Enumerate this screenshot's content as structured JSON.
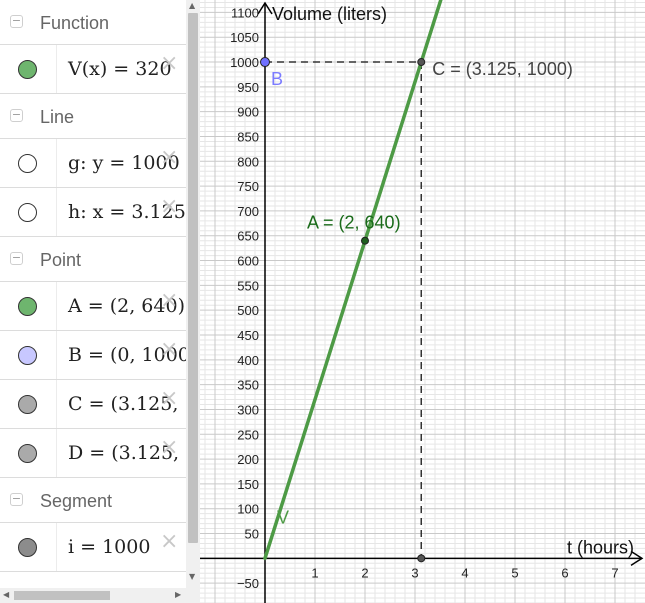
{
  "algebra": {
    "groups": [
      {
        "title": "Function",
        "items": [
          {
            "expr": "V(x) = 320",
            "color": "#6eb56e"
          }
        ]
      },
      {
        "title": "Line",
        "items": [
          {
            "expr": "g: y = 1000",
            "color": "#ffffff"
          },
          {
            "expr": "h: x = 3.125",
            "color": "#ffffff"
          }
        ]
      },
      {
        "title": "Point",
        "items": [
          {
            "expr": "A = (2, 640)",
            "color": "#6eb56e"
          },
          {
            "expr": "B = (0, 1000",
            "color": "#c8c8ff"
          },
          {
            "expr": "C = (3.125,",
            "color": "#aaaaaa"
          },
          {
            "expr": "D = (3.125,",
            "color": "#aaaaaa"
          }
        ]
      },
      {
        "title": "Segment",
        "items": [
          {
            "expr": "i = 1000",
            "color": "#8c8c8c"
          }
        ]
      }
    ],
    "delete_glyph": "×",
    "collapse_glyph": "−"
  },
  "graph": {
    "x_axis_label": "t (hours)",
    "y_axis_label": "Volume (liters)",
    "x_ticks": [
      1,
      2,
      3,
      4,
      5,
      6,
      7
    ],
    "y_ticks": [
      -50,
      50,
      100,
      150,
      200,
      250,
      300,
      350,
      400,
      450,
      500,
      550,
      600,
      650,
      700,
      750,
      800,
      850,
      900,
      950,
      1000,
      1050,
      1100
    ],
    "x_view": [
      -1.3,
      7.6
    ],
    "y_view": [
      -90,
      1125
    ],
    "function": {
      "name": "V",
      "slope": 320,
      "intercept": 0,
      "color": "#4d9a45"
    },
    "points": [
      {
        "name": "A",
        "x": 2,
        "y": 640,
        "label": "A = (2, 640)",
        "color": "#1f5f1f",
        "label_color": "#1a6b1a"
      },
      {
        "name": "B",
        "x": 0,
        "y": 1000,
        "label": "B",
        "color": "#7070ff",
        "label_color": "#7b7bff"
      },
      {
        "name": "C",
        "x": 3.125,
        "y": 1000,
        "label": "C = (3.125, 1000)",
        "color": "#555555",
        "label_color": "#444444"
      },
      {
        "name": "D",
        "x": 3.125,
        "y": 0,
        "label": "",
        "color": "#555555",
        "label_color": "#444444"
      }
    ],
    "function_label": "V",
    "colors": {
      "minor_grid": "#e6e6e6",
      "major_grid": "#c9c9c9",
      "axis": "#000000",
      "dash": "#333333"
    }
  }
}
